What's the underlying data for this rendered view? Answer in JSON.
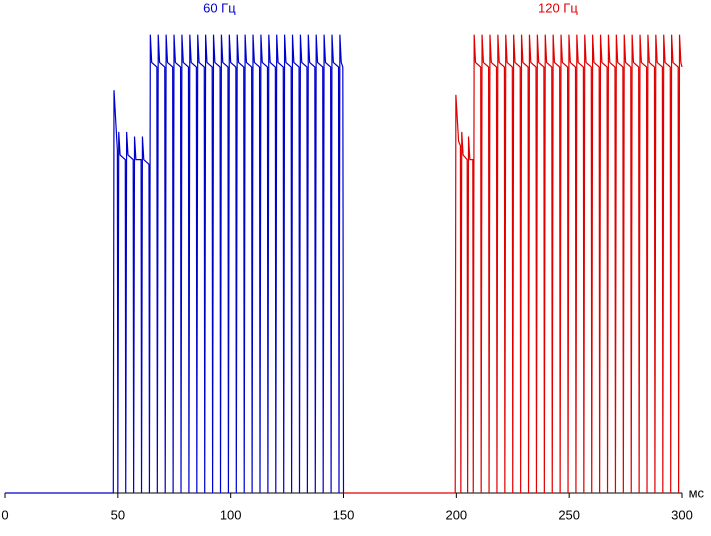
{
  "chart_data": {
    "type": "line",
    "x_label": "мс",
    "xlim": [
      0,
      300
    ],
    "xticks": [
      0,
      50,
      100,
      150,
      200,
      250,
      300
    ],
    "ylim": [
      0,
      100
    ],
    "series": [
      {
        "name": "60 Гц",
        "color": "#0000cc",
        "x": [
          0,
          48,
          48.3,
          49.8,
          50,
          50.4,
          51,
          53.3,
          53.5,
          53.9,
          54.5,
          56.8,
          57,
          57.4,
          58,
          60.3,
          60.5,
          60.9,
          61.5,
          63.8,
          64,
          64.4,
          65,
          67.3,
          67.5,
          67.9,
          68.5,
          70.8,
          71,
          71.4,
          72,
          74.3,
          74.5,
          74.9,
          75.5,
          77.8,
          78,
          78.4,
          79,
          81.3,
          81.5,
          81.9,
          82.5,
          84.8,
          85,
          85.4,
          86,
          88.3,
          88.5,
          88.9,
          89.5,
          91.8,
          92,
          92.4,
          93,
          95.3,
          95.5,
          95.9,
          96.5,
          98.8,
          99,
          99.4,
          100,
          102.3,
          102.5,
          102.9,
          103.5,
          105.8,
          106,
          106.4,
          107,
          109.3,
          109.5,
          109.9,
          110.5,
          112.8,
          113,
          113.4,
          114,
          116.3,
          116.5,
          116.9,
          117.5,
          119.8,
          120,
          120.4,
          121,
          123.3,
          123.5,
          123.9,
          124.5,
          126.8,
          127,
          127.4,
          128,
          130.3,
          130.5,
          130.9,
          131.5,
          133.8,
          134,
          134.4,
          135,
          137.3,
          137.5,
          137.9,
          138.5,
          140.8,
          141,
          141.4,
          142,
          144.3,
          144.5,
          144.9,
          145.5,
          147.8,
          148,
          148.4,
          149,
          149.7,
          150
        ],
        "values": [
          0,
          0,
          87,
          74,
          0,
          78,
          73,
          72,
          0,
          78,
          73,
          72,
          0,
          77,
          72,
          72,
          0,
          77,
          72,
          71,
          0,
          99,
          93,
          92,
          0,
          99,
          93,
          92,
          0,
          99,
          93,
          92,
          0,
          99,
          93,
          92,
          0,
          99,
          93,
          92,
          0,
          99,
          93,
          92,
          0,
          99,
          93,
          92,
          0,
          99,
          93,
          92,
          0,
          99,
          93,
          92,
          0,
          99,
          93,
          92,
          0,
          99,
          93,
          92,
          0,
          99,
          93,
          92,
          0,
          99,
          93,
          92,
          0,
          99,
          93,
          92,
          0,
          99,
          93,
          92,
          0,
          99,
          93,
          92,
          0,
          99,
          93,
          92,
          0,
          99,
          93,
          92,
          0,
          99,
          93,
          92,
          0,
          99,
          93,
          92,
          0,
          99,
          93,
          92,
          0,
          99,
          93,
          92,
          0,
          99,
          93,
          92,
          0,
          99,
          93,
          92,
          0,
          99,
          93,
          92,
          0
        ]
      },
      {
        "name": "120 Гц",
        "color": "#e00000",
        "x": [
          150,
          199.5,
          199.8,
          201,
          201.8,
          202,
          202.4,
          203,
          204.8,
          205,
          205.4,
          206,
          207.3,
          207.5,
          207.9,
          208.5,
          210.8,
          211,
          211.4,
          212,
          214.3,
          214.5,
          214.9,
          215.5,
          217.8,
          218,
          218.4,
          219,
          221.3,
          221.5,
          221.9,
          222.5,
          224.8,
          225,
          225.4,
          226,
          228.3,
          228.5,
          228.9,
          229.5,
          231.8,
          232,
          232.4,
          233,
          235.3,
          235.5,
          235.9,
          236.5,
          238.8,
          239,
          239.4,
          240,
          242.3,
          242.5,
          242.9,
          243.5,
          245.8,
          246,
          246.4,
          247,
          249.3,
          249.5,
          249.9,
          250.5,
          252.8,
          253,
          253.4,
          254,
          256.3,
          256.5,
          256.9,
          257.5,
          259.8,
          260,
          260.4,
          261,
          263.3,
          263.5,
          263.9,
          264.5,
          266.8,
          267,
          267.4,
          268,
          270.3,
          270.5,
          270.9,
          271.5,
          273.8,
          274,
          274.4,
          275,
          277.3,
          277.5,
          277.9,
          278.5,
          280.8,
          281,
          281.4,
          282,
          284.3,
          284.5,
          284.9,
          285.5,
          287.8,
          288,
          288.4,
          289,
          291.3,
          291.5,
          291.9,
          292.5,
          294.8,
          295,
          295.4,
          296,
          298.3,
          298.5,
          298.9,
          299.5,
          300
        ],
        "values": [
          0,
          0,
          86,
          76,
          75,
          0,
          78,
          73,
          72,
          0,
          77,
          72,
          72,
          0,
          99,
          93,
          92,
          0,
          99,
          93,
          92,
          0,
          99,
          93,
          92,
          0,
          99,
          93,
          92,
          0,
          99,
          93,
          92,
          0,
          99,
          93,
          92,
          0,
          99,
          93,
          92,
          0,
          99,
          93,
          92,
          0,
          99,
          93,
          92,
          0,
          99,
          93,
          92,
          0,
          99,
          93,
          92,
          0,
          99,
          93,
          92,
          0,
          99,
          93,
          92,
          0,
          99,
          93,
          92,
          0,
          99,
          93,
          92,
          0,
          99,
          93,
          92,
          0,
          99,
          93,
          92,
          0,
          99,
          93,
          92,
          0,
          99,
          93,
          92,
          0,
          99,
          93,
          92,
          0,
          99,
          93,
          92,
          0,
          99,
          93,
          92,
          0,
          99,
          93,
          92,
          0,
          99,
          93,
          92,
          0,
          99,
          93,
          92,
          0,
          99,
          93,
          92,
          0,
          99,
          93,
          92
        ]
      }
    ]
  }
}
